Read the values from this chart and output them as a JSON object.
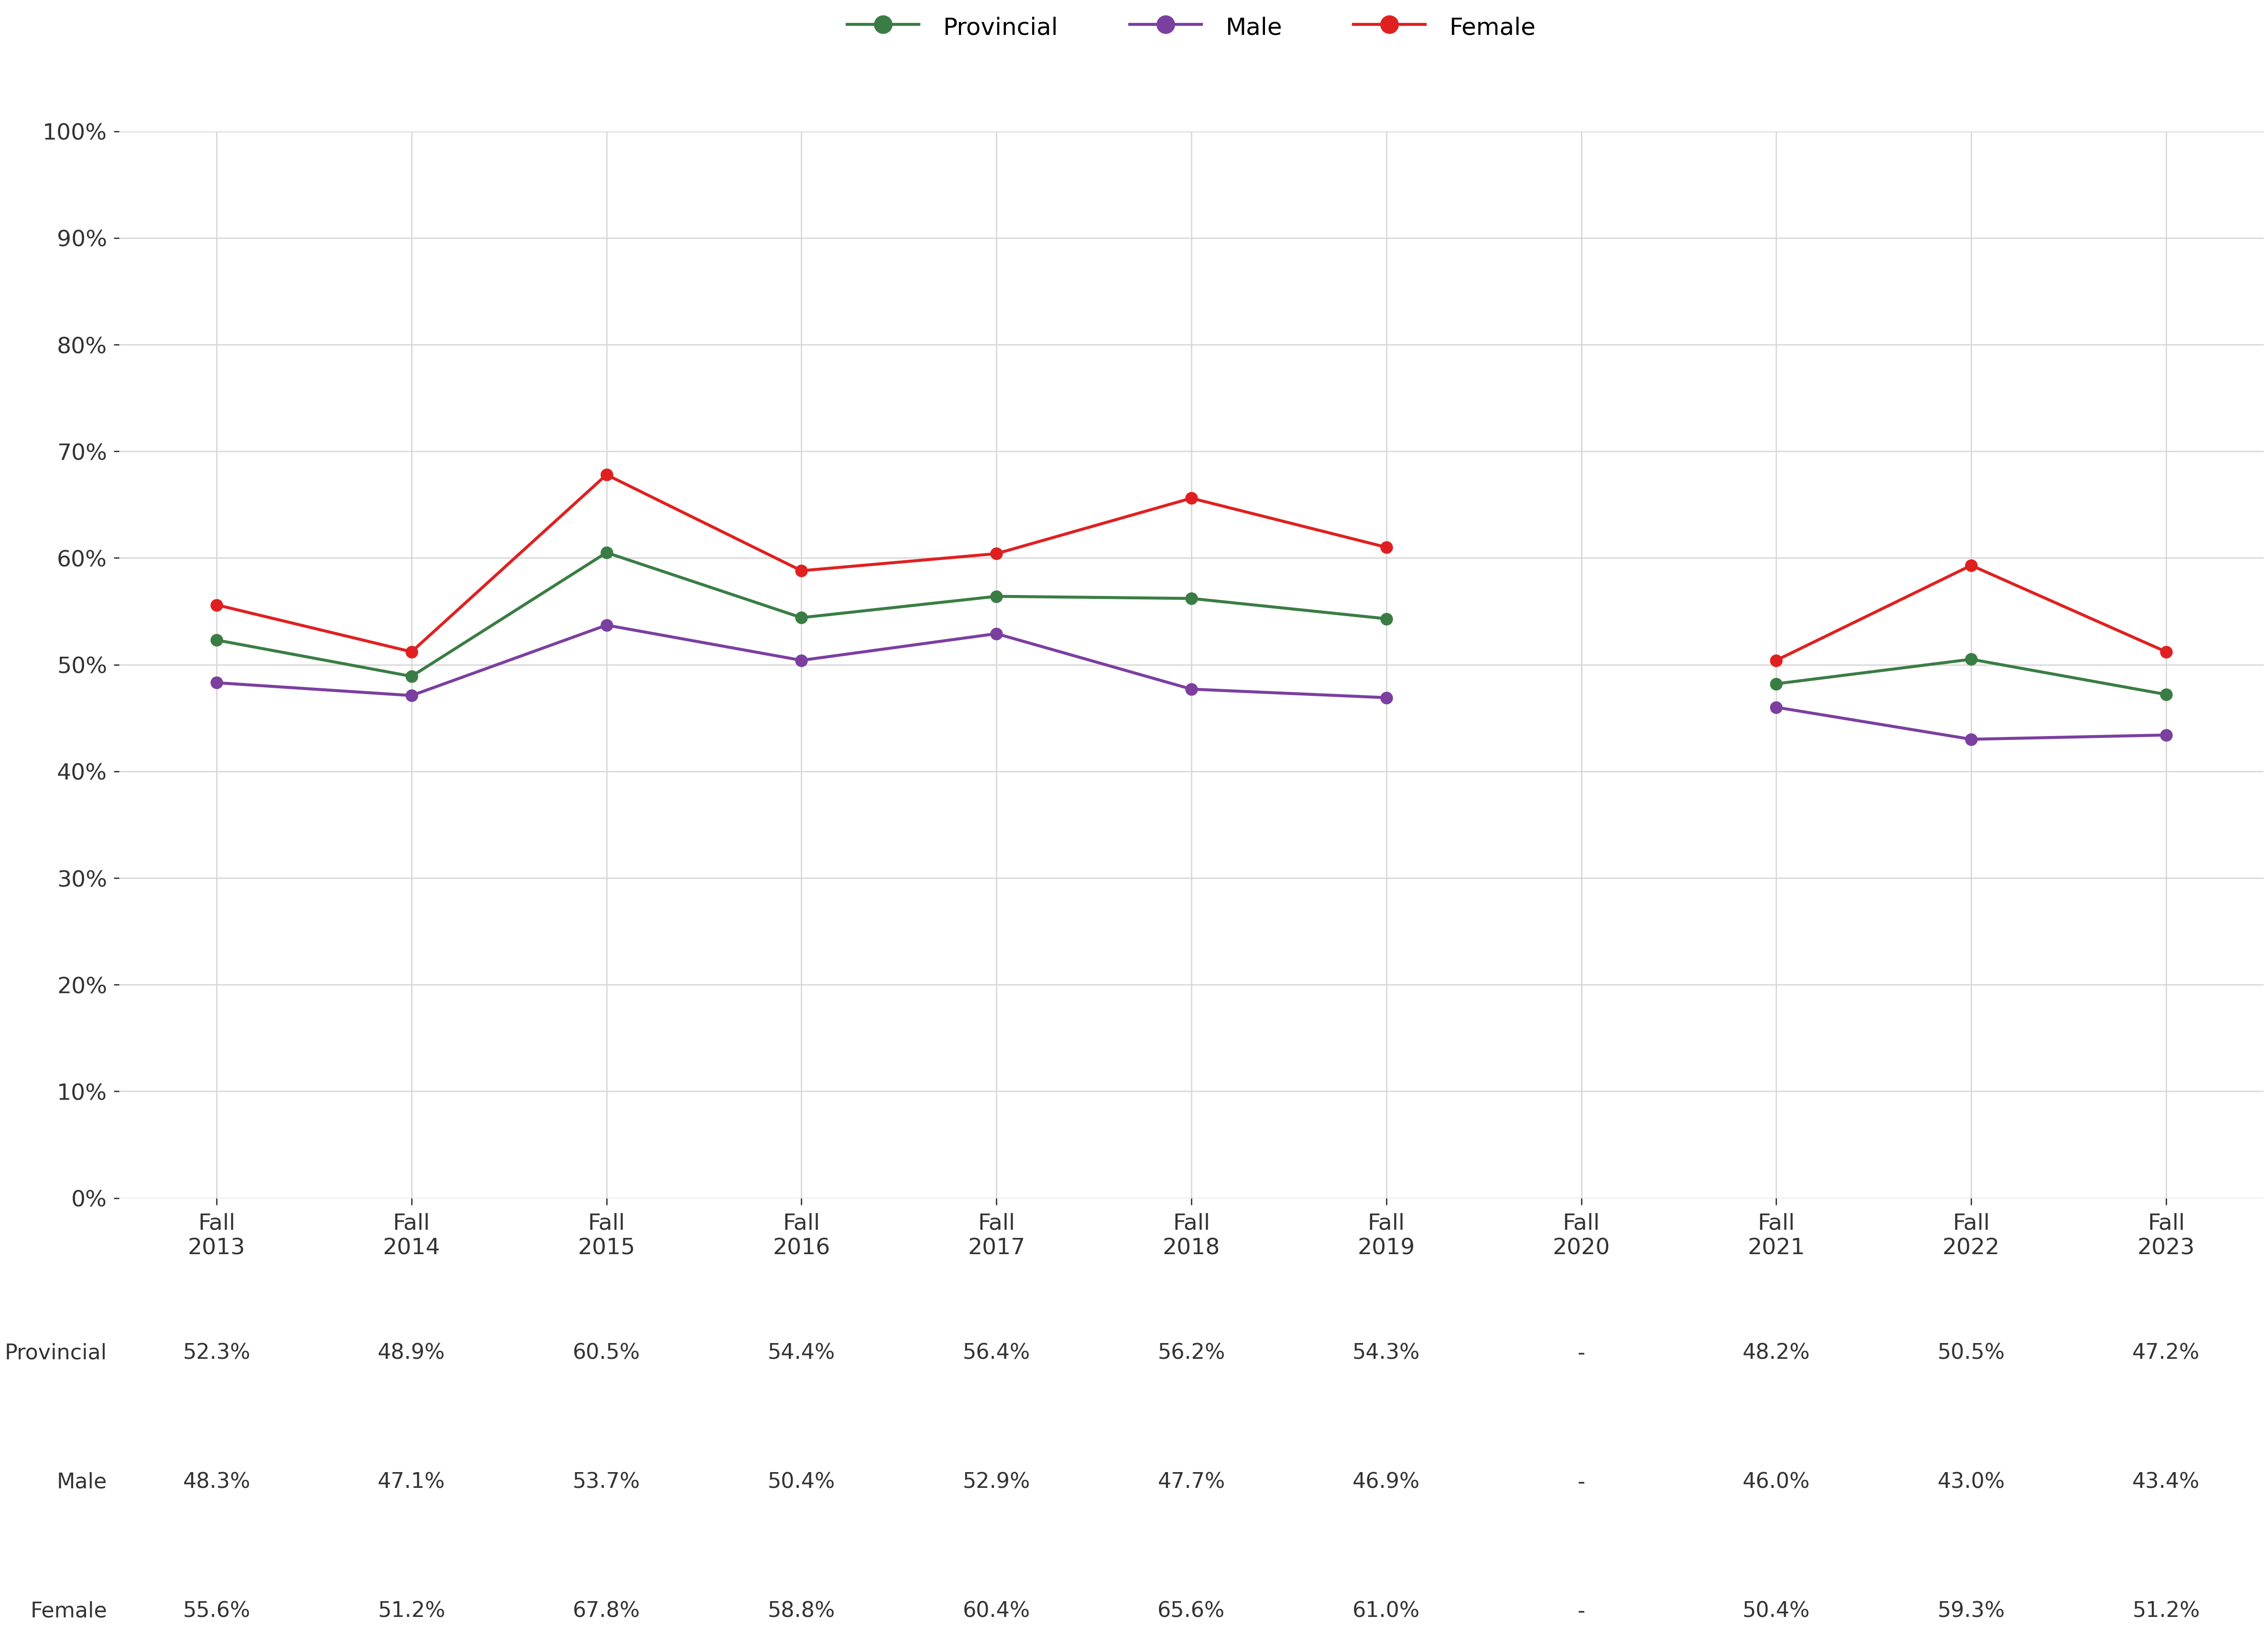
{
  "x_labels": [
    "Fall\n2013",
    "Fall\n2014",
    "Fall\n2015",
    "Fall\n2016",
    "Fall\n2017",
    "Fall\n2018",
    "Fall\n2019",
    "Fall\n2020",
    "Fall\n2021",
    "Fall\n2022",
    "Fall\n2023"
  ],
  "x_positions": [
    0,
    1,
    2,
    3,
    4,
    5,
    6,
    7,
    8,
    9,
    10
  ],
  "provincial": [
    52.3,
    48.9,
    60.5,
    54.4,
    56.4,
    56.2,
    54.3,
    null,
    48.2,
    50.5,
    47.2
  ],
  "male": [
    48.3,
    47.1,
    53.7,
    50.4,
    52.9,
    47.7,
    46.9,
    null,
    46.0,
    43.0,
    43.4
  ],
  "female": [
    55.6,
    51.2,
    67.8,
    58.8,
    60.4,
    65.6,
    61.0,
    null,
    50.4,
    59.3,
    51.2
  ],
  "provincial_color": "#3a7d44",
  "male_color": "#7b3fa0",
  "female_color": "#e02020",
  "background_color": "#ffffff",
  "grid_color": "#d8d8d8",
  "tick_color": "#333333",
  "table_row_labels": [
    "Provincial",
    "Male",
    "Female"
  ],
  "table_values": [
    [
      "52.3%",
      "48.9%",
      "60.5%",
      "54.4%",
      "56.4%",
      "56.2%",
      "54.3%",
      "-",
      "48.2%",
      "50.5%",
      "47.2%"
    ],
    [
      "48.3%",
      "47.1%",
      "53.7%",
      "50.4%",
      "52.9%",
      "47.7%",
      "46.9%",
      "-",
      "46.0%",
      "43.0%",
      "43.4%"
    ],
    [
      "55.6%",
      "51.2%",
      "67.8%",
      "58.8%",
      "60.4%",
      "65.6%",
      "61.0%",
      "-",
      "50.4%",
      "59.3%",
      "51.2%"
    ]
  ],
  "yticks_pct": [
    0,
    10,
    20,
    30,
    40,
    50,
    60,
    70,
    80,
    90,
    100
  ],
  "marker_size": 18,
  "line_width": 4.5,
  "font_size_ticks": 34,
  "font_size_legend": 36,
  "font_size_table_val": 32,
  "font_size_table_label": 32
}
